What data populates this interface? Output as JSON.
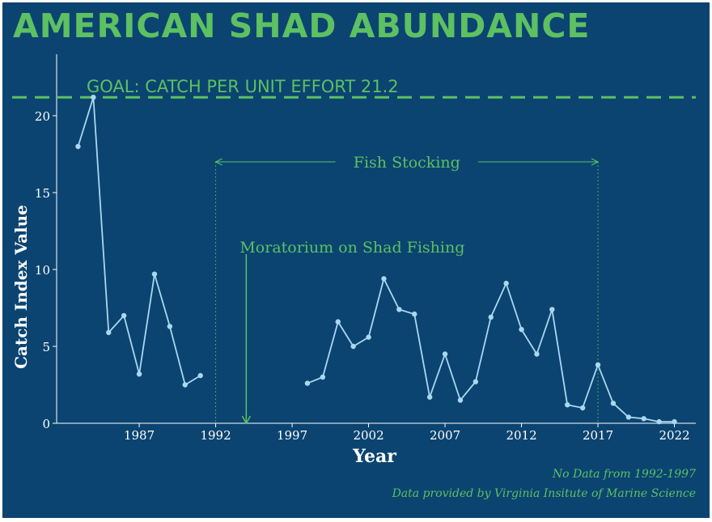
{
  "title": "AMERICAN SHAD ABUNDANCE",
  "colors": {
    "background": "#0b4471",
    "accent_green": "#5dc062",
    "series_line": "#a9d8ef",
    "axis": "#ffffff"
  },
  "notes": {
    "line1": "No Data from 1992-1997",
    "line2": "Data provided by Virginia Insitute of Marine Science"
  },
  "chart_data": {
    "type": "line",
    "title": "AMERICAN SHAD ABUNDANCE",
    "xlabel": "Year",
    "ylabel": "Catch Index Value",
    "xlim": [
      1981.6,
      2023.4
    ],
    "ylim": [
      0,
      24
    ],
    "x_ticks": [
      1987,
      1992,
      1997,
      2002,
      2007,
      2012,
      2017,
      2022
    ],
    "y_ticks": [
      0,
      5,
      10,
      15,
      20
    ],
    "grid": false,
    "series": [
      {
        "segments": [
          [
            [
              1983,
              18.0
            ],
            [
              1984,
              21.2
            ],
            [
              1985,
              5.9
            ],
            [
              1986,
              7.0
            ],
            [
              1987,
              3.2
            ],
            [
              1988,
              9.7
            ],
            [
              1989,
              6.3
            ],
            [
              1990,
              2.5
            ],
            [
              1991,
              3.1
            ]
          ],
          [
            [
              1998,
              2.6
            ],
            [
              1999,
              3.0
            ],
            [
              2000,
              6.6
            ],
            [
              2001,
              5.0
            ],
            [
              2002,
              5.6
            ],
            [
              2003,
              9.4
            ],
            [
              2004,
              7.4
            ],
            [
              2005,
              7.1
            ],
            [
              2006,
              1.7
            ],
            [
              2007,
              4.5
            ],
            [
              2008,
              1.5
            ],
            [
              2009,
              2.7
            ],
            [
              2010,
              6.9
            ],
            [
              2011,
              9.1
            ],
            [
              2012,
              6.1
            ],
            [
              2013,
              4.5
            ],
            [
              2014,
              7.4
            ],
            [
              2015,
              1.2
            ],
            [
              2016,
              1.0
            ],
            [
              2017,
              3.8
            ],
            [
              2018,
              1.3
            ],
            [
              2019,
              0.4
            ],
            [
              2020,
              0.3
            ],
            [
              2021,
              0.1
            ],
            [
              2022,
              0.1
            ]
          ]
        ]
      }
    ],
    "goal_line": {
      "y": 21.2,
      "label": "GOAL: CATCH PER UNIT EFFORT 21.2"
    },
    "annotations": [
      {
        "label": "Fish Stocking",
        "x_start": 1992,
        "x_end": 2017,
        "y": 17
      },
      {
        "label": "Moratorium on Shad Fishing",
        "x": 1994,
        "y_top": 11
      }
    ]
  }
}
